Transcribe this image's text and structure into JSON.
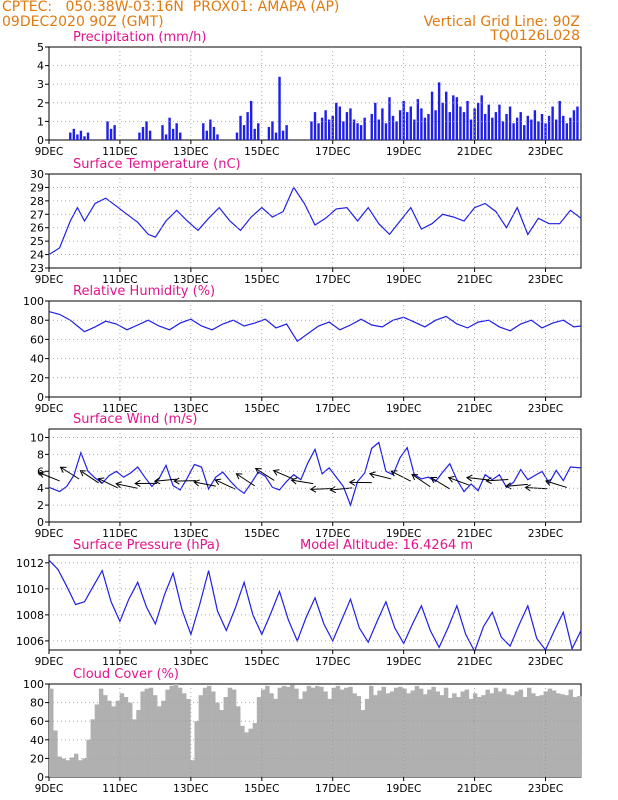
{
  "header": {
    "line1_left": "CPTEC:   050:38W-03:16N  PROX01: AMAPA (AP)",
    "line2_left": "09DEC2020 90Z (GMT)",
    "line2_right": "Vertical Grid Line: 90Z",
    "line3_right": "TQ0126L028"
  },
  "colors": {
    "header": "#e07a10",
    "panel_title": "#e0148c",
    "series": "#1f1fe6",
    "cloud": "#b0b0b0",
    "grid": "#999999"
  },
  "x_axis": {
    "tick_labels": [
      "9DEC",
      "11DEC",
      "13DEC",
      "15DEC",
      "17DEC",
      "19DEC",
      "21DEC",
      "23DEC"
    ],
    "range_days": [
      0,
      15
    ],
    "grid": "dotted, every 2 days"
  },
  "chart_data": [
    {
      "type": "bar",
      "title": "Precipitation (mm/h)",
      "ylim": [
        0,
        5
      ],
      "yticks": [
        "0",
        "1",
        "2",
        "3",
        "4",
        "5"
      ],
      "x_days": [
        0.6,
        0.7,
        0.8,
        0.9,
        1.0,
        1.1,
        1.65,
        1.75,
        1.85,
        2.55,
        2.65,
        2.75,
        2.85,
        3.2,
        3.3,
        3.4,
        3.5,
        3.6,
        3.7,
        4.35,
        4.45,
        4.55,
        4.65,
        4.75,
        5.3,
        5.4,
        5.5,
        5.6,
        5.7,
        5.8,
        5.9,
        6.2,
        6.3,
        6.4,
        6.5,
        6.6,
        6.7,
        7.4,
        7.5,
        7.6,
        7.7,
        7.8,
        7.9,
        8.0,
        8.1,
        8.2,
        8.3,
        8.4,
        8.5,
        8.6,
        8.7,
        8.8,
        8.9,
        9.1,
        9.2,
        9.3,
        9.4,
        9.5,
        9.6,
        9.7,
        9.8,
        9.9,
        10.0,
        10.1,
        10.2,
        10.3,
        10.4,
        10.5,
        10.6,
        10.7,
        10.8,
        10.9,
        11.0,
        11.1,
        11.2,
        11.3,
        11.4,
        11.5,
        11.6,
        11.7,
        11.8,
        11.9,
        12.0,
        12.1,
        12.2,
        12.3,
        12.4,
        12.5,
        12.6,
        12.7,
        12.8,
        12.9,
        13.0,
        13.1,
        13.2,
        13.3,
        13.4,
        13.5,
        13.6,
        13.7,
        13.8,
        13.9,
        14.0,
        14.1,
        14.2,
        14.3,
        14.4,
        14.5,
        14.6,
        14.7,
        14.8,
        14.9
      ],
      "values": [
        0.4,
        0.6,
        0.3,
        0.5,
        0.2,
        0.4,
        1.0,
        0.6,
        0.8,
        0.4,
        0.7,
        1.0,
        0.5,
        0.8,
        0.3,
        1.2,
        0.6,
        0.9,
        0.4,
        0.9,
        0.5,
        1.1,
        0.7,
        0.3,
        0.4,
        1.3,
        0.8,
        1.5,
        2.1,
        0.6,
        0.9,
        0.7,
        1.0,
        0.4,
        3.4,
        0.5,
        0.8,
        1.0,
        1.5,
        0.9,
        1.2,
        1.6,
        1.1,
        1.3,
        2.0,
        1.8,
        1.0,
        1.5,
        1.7,
        1.1,
        0.9,
        0.8,
        1.2,
        1.4,
        2.0,
        1.1,
        1.7,
        0.9,
        2.3,
        1.3,
        1.0,
        1.6,
        2.1,
        1.5,
        1.8,
        1.1,
        2.2,
        1.7,
        1.2,
        1.4,
        2.6,
        1.6,
        3.1,
        2.0,
        2.6,
        1.5,
        2.4,
        2.3,
        1.8,
        1.5,
        2.1,
        1.1,
        1.7,
        2.0,
        2.4,
        1.4,
        1.9,
        1.2,
        1.5,
        1.9,
        1.0,
        1.4,
        1.8,
        0.9,
        1.2,
        1.5,
        0.8,
        1.3,
        1.1,
        1.6,
        1.0,
        1.4,
        0.9,
        1.3,
        1.8,
        1.1,
        2.1,
        1.3,
        0.9,
        1.2,
        1.6,
        1.8
      ]
    },
    {
      "type": "line",
      "title": "Surface Temperature (nC)",
      "ylim": [
        23,
        30
      ],
      "yticks": [
        "23",
        "24",
        "25",
        "26",
        "27",
        "28",
        "29",
        "30"
      ],
      "x_days": [
        0,
        0.3,
        0.6,
        0.8,
        1.0,
        1.3,
        1.6,
        1.9,
        2.2,
        2.5,
        2.8,
        3.0,
        3.3,
        3.6,
        3.9,
        4.2,
        4.5,
        4.8,
        5.1,
        5.4,
        5.7,
        6.0,
        6.3,
        6.6,
        6.9,
        7.2,
        7.5,
        7.8,
        8.1,
        8.4,
        8.7,
        9.0,
        9.3,
        9.6,
        9.9,
        10.2,
        10.5,
        10.8,
        11.1,
        11.4,
        11.7,
        12.0,
        12.3,
        12.6,
        12.9,
        13.2,
        13.5,
        13.8,
        14.1,
        14.4,
        14.7,
        15.0
      ],
      "values": [
        24.0,
        24.5,
        26.5,
        27.5,
        26.5,
        27.8,
        28.2,
        27.6,
        27.0,
        26.4,
        25.5,
        25.3,
        26.5,
        27.3,
        26.5,
        25.8,
        26.7,
        27.5,
        26.5,
        25.8,
        26.8,
        27.5,
        26.8,
        27.2,
        29.0,
        27.8,
        26.2,
        26.7,
        27.4,
        27.5,
        26.5,
        27.5,
        26.3,
        25.5,
        26.5,
        27.5,
        25.9,
        26.3,
        27.0,
        26.8,
        26.5,
        27.5,
        27.8,
        27.2,
        26.0,
        27.5,
        25.5,
        26.7,
        26.3,
        26.3,
        27.3,
        26.7
      ]
    },
    {
      "type": "line",
      "title": "Relative Humidity (%)",
      "ylim": [
        0,
        100
      ],
      "yticks": [
        "0",
        "20",
        "40",
        "60",
        "80",
        "100"
      ],
      "x_days": [
        0,
        0.3,
        0.6,
        0.8,
        1.0,
        1.3,
        1.6,
        1.9,
        2.2,
        2.5,
        2.8,
        3.1,
        3.4,
        3.7,
        4.0,
        4.3,
        4.6,
        4.9,
        5.2,
        5.5,
        5.8,
        6.1,
        6.4,
        6.7,
        7.0,
        7.3,
        7.6,
        7.9,
        8.2,
        8.5,
        8.8,
        9.1,
        9.4,
        9.7,
        10.0,
        10.3,
        10.6,
        10.9,
        11.2,
        11.5,
        11.8,
        12.1,
        12.4,
        12.7,
        13.0,
        13.3,
        13.6,
        13.9,
        14.2,
        14.5,
        14.8,
        15.0
      ],
      "values": [
        89,
        86,
        80,
        74,
        68,
        73,
        79,
        76,
        70,
        75,
        80,
        74,
        70,
        77,
        81,
        74,
        70,
        76,
        80,
        74,
        77,
        81,
        72,
        76,
        58,
        66,
        74,
        78,
        70,
        75,
        81,
        75,
        73,
        80,
        83,
        78,
        73,
        80,
        84,
        76,
        72,
        78,
        80,
        73,
        69,
        76,
        80,
        72,
        77,
        80,
        73,
        74
      ]
    },
    {
      "type": "line",
      "title": "Surface Wind (m/s)",
      "ylim": [
        0,
        11
      ],
      "yticks": [
        "0",
        "2",
        "4",
        "6",
        "8",
        "10"
      ],
      "x_days": [
        0,
        0.3,
        0.5,
        0.7,
        0.9,
        1.1,
        1.3,
        1.5,
        1.7,
        1.9,
        2.1,
        2.3,
        2.5,
        2.7,
        2.9,
        3.1,
        3.3,
        3.5,
        3.7,
        3.9,
        4.1,
        4.3,
        4.5,
        4.7,
        4.9,
        5.1,
        5.3,
        5.5,
        5.7,
        5.9,
        6.1,
        6.3,
        6.5,
        6.7,
        6.9,
        7.1,
        7.3,
        7.5,
        7.7,
        7.9,
        8.1,
        8.3,
        8.5,
        8.7,
        8.9,
        9.1,
        9.3,
        9.5,
        9.7,
        9.9,
        10.1,
        10.3,
        10.5,
        10.7,
        10.9,
        11.1,
        11.3,
        11.5,
        11.7,
        11.9,
        12.1,
        12.3,
        12.5,
        12.7,
        12.9,
        13.1,
        13.3,
        13.5,
        13.7,
        13.9,
        14.1,
        14.3,
        14.5,
        14.7,
        15.0
      ],
      "values": [
        4.1,
        3.6,
        4.2,
        5.5,
        8.2,
        6.0,
        5.2,
        4.6,
        5.5,
        6.0,
        5.3,
        5.8,
        6.5,
        5.3,
        4.2,
        5.1,
        6.7,
        4.3,
        3.8,
        5.2,
        6.8,
        6.5,
        3.9,
        5.3,
        5.9,
        4.9,
        4.0,
        3.4,
        4.6,
        5.9,
        5.4,
        4.1,
        3.8,
        4.8,
        5.6,
        5.0,
        7.0,
        8.6,
        5.7,
        6.4,
        5.3,
        4.2,
        2.0,
        4.8,
        5.8,
        8.7,
        9.4,
        6.0,
        5.6,
        7.6,
        8.8,
        5.6,
        5.1,
        5.3,
        4.8,
        5.9,
        6.9,
        5.0,
        3.6,
        4.5,
        3.7,
        5.6,
        5.0,
        5.6,
        4.1,
        4.7,
        6.2,
        5.0,
        5.5,
        6.0,
        4.6,
        6.1,
        4.9,
        6.5,
        6.4
      ]
    },
    {
      "type": "line",
      "title": "Surface Pressure (hPa)",
      "annotation": "Model Altitude: 16.4264 m",
      "ylim": [
        1005.3,
        1012.6
      ],
      "yticks": [
        "1006",
        "1008",
        "1010",
        "1012"
      ],
      "x_days": [
        0,
        0.25,
        0.5,
        0.75,
        1.0,
        1.25,
        1.5,
        1.75,
        2.0,
        2.25,
        2.5,
        2.75,
        3.0,
        3.25,
        3.5,
        3.75,
        4.0,
        4.25,
        4.5,
        4.75,
        5.0,
        5.25,
        5.5,
        5.75,
        6.0,
        6.25,
        6.5,
        6.75,
        7.0,
        7.25,
        7.5,
        7.75,
        8.0,
        8.25,
        8.5,
        8.75,
        9.0,
        9.25,
        9.5,
        9.75,
        10.0,
        10.25,
        10.5,
        10.75,
        11.0,
        11.25,
        11.5,
        11.75,
        12.0,
        12.25,
        12.5,
        12.75,
        13.0,
        13.25,
        13.5,
        13.75,
        14.0,
        14.25,
        14.5,
        14.75,
        15.0
      ],
      "values": [
        1012.2,
        1011.5,
        1010.2,
        1008.8,
        1009.0,
        1010.2,
        1011.4,
        1009.0,
        1007.5,
        1009.2,
        1010.5,
        1008.6,
        1007.3,
        1009.5,
        1011.2,
        1008.4,
        1006.5,
        1008.8,
        1011.4,
        1008.3,
        1006.8,
        1008.5,
        1010.5,
        1008.0,
        1006.5,
        1008.1,
        1009.8,
        1007.6,
        1006.0,
        1007.8,
        1009.3,
        1007.3,
        1006.0,
        1007.6,
        1009.2,
        1007.0,
        1005.9,
        1007.5,
        1009.0,
        1007.0,
        1005.8,
        1007.3,
        1008.7,
        1006.8,
        1005.5,
        1007.0,
        1008.7,
        1006.5,
        1005.2,
        1007.1,
        1008.2,
        1006.3,
        1005.6,
        1007.2,
        1008.7,
        1006.2,
        1005.3,
        1006.8,
        1008.2,
        1005.4,
        1006.8
      ]
    },
    {
      "type": "bar",
      "title": "Cloud Cover (%)",
      "ylim": [
        0,
        100
      ],
      "yticks": [
        "0",
        "20",
        "40",
        "60",
        "80",
        "100"
      ],
      "values": [
        95,
        50,
        22,
        20,
        18,
        21,
        25,
        18,
        20,
        40,
        62,
        78,
        95,
        88,
        82,
        76,
        82,
        90,
        86,
        80,
        62,
        72,
        92,
        95,
        96,
        88,
        76,
        82,
        94,
        98,
        100,
        96,
        90,
        84,
        18,
        60,
        88,
        96,
        98,
        92,
        80,
        72,
        86,
        96,
        94,
        76,
        55,
        48,
        52,
        58,
        86,
        94,
        98,
        90,
        84,
        96,
        98,
        97,
        99,
        95,
        84,
        92,
        98,
        96,
        98,
        97,
        92,
        84,
        96,
        98,
        94,
        96,
        97,
        90,
        87,
        72,
        84,
        98,
        88,
        93,
        97,
        90,
        92,
        96,
        97,
        95,
        90,
        93,
        98,
        95,
        89,
        94,
        97,
        92,
        88,
        96,
        85,
        90,
        86,
        92,
        94,
        84,
        90,
        86,
        88,
        94,
        90,
        96,
        92,
        95,
        89,
        88,
        92,
        94,
        86,
        96,
        90,
        87,
        88,
        92,
        95,
        93,
        90,
        89,
        88,
        94,
        86,
        87
      ]
    }
  ]
}
